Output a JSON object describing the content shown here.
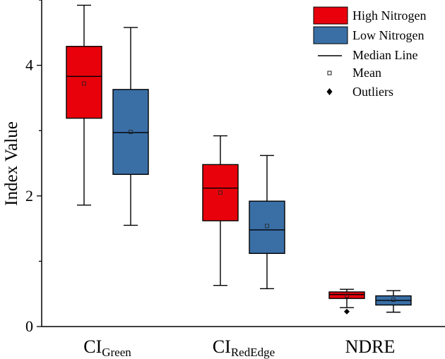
{
  "chart_data": {
    "type": "box",
    "ylabel": "Index Value",
    "xlabel": "",
    "ylim": [
      0,
      5
    ],
    "yticks": [
      0,
      2,
      4
    ],
    "categories": [
      {
        "main": "CI",
        "sub": "Green"
      },
      {
        "main": "CI",
        "sub": "RedEdge"
      },
      {
        "main": "NDRE",
        "sub": ""
      }
    ],
    "series": [
      {
        "name": "High Nitrogen",
        "color": "#e8000b",
        "boxes": [
          {
            "whisker_low": 1.86,
            "q1": 3.19,
            "median": 3.83,
            "q3": 4.29,
            "whisker_high": 4.92,
            "mean": 3.72,
            "outliers": []
          },
          {
            "whisker_low": 0.63,
            "q1": 1.62,
            "median": 2.12,
            "q3": 2.48,
            "whisker_high": 2.92,
            "mean": 2.05,
            "outliers": []
          },
          {
            "whisker_low": 0.29,
            "q1": 0.43,
            "median": 0.49,
            "q3": 0.53,
            "whisker_high": 0.57,
            "mean": 0.47,
            "outliers": [
              0.23
            ]
          }
        ]
      },
      {
        "name": "Low Nitrogen",
        "color": "#3a6fa6",
        "boxes": [
          {
            "whisker_low": 1.55,
            "q1": 2.33,
            "median": 2.97,
            "q3": 3.63,
            "whisker_high": 4.58,
            "mean": 2.98,
            "outliers": []
          },
          {
            "whisker_low": 0.58,
            "q1": 1.12,
            "median": 1.48,
            "q3": 1.92,
            "whisker_high": 2.62,
            "mean": 1.54,
            "outliers": []
          },
          {
            "whisker_low": 0.22,
            "q1": 0.33,
            "median": 0.4,
            "q3": 0.47,
            "whisker_high": 0.55,
            "mean": 0.41,
            "outliers": []
          }
        ]
      }
    ],
    "legend": {
      "placement": "top-right",
      "entries": [
        {
          "key": "high",
          "label": "High Nitrogen"
        },
        {
          "key": "low",
          "label": "Low Nitrogen"
        },
        {
          "key": "median",
          "label": "Median Line"
        },
        {
          "key": "mean",
          "label": "Mean"
        },
        {
          "key": "outliers",
          "label": "Outliers"
        }
      ]
    },
    "grid": false
  }
}
